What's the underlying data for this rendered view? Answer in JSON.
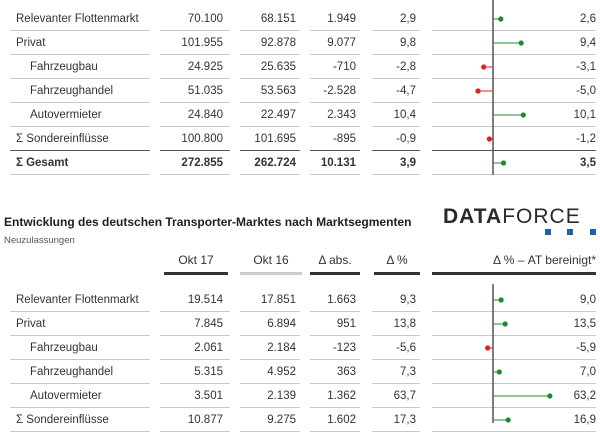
{
  "chart_data": [
    {
      "type": "table",
      "columns": [
        "",
        "",
        "",
        "",
        ""
      ],
      "rows": [
        {
          "name": "Relevanter Flottenmarkt",
          "values": [
            "70.100",
            "68.151",
            "1.949",
            "2,9"
          ],
          "adj": "2,6",
          "adj_value": 2.6
        },
        {
          "name": "Privat",
          "values": [
            "101.955",
            "92.878",
            "9.077",
            "9,8"
          ],
          "adj": "9,4",
          "adj_value": 9.4
        },
        {
          "name": "Fahrzeugbau",
          "values": [
            "24.925",
            "25.635",
            "-710",
            "-2,8"
          ],
          "adj": "-3,1",
          "adj_value": -3.1
        },
        {
          "name": "Fahrzeughandel",
          "values": [
            "51.035",
            "53.563",
            "-2.528",
            "-4,7"
          ],
          "adj": "-5,0",
          "adj_value": -5.0
        },
        {
          "name": "Autovermieter",
          "values": [
            "24.840",
            "22.497",
            "2.343",
            "10,4"
          ],
          "adj": "10,1",
          "adj_value": 10.1
        },
        {
          "name": "Σ Sondereinflüsse",
          "values": [
            "100.800",
            "101.695",
            "-895",
            "-0,9"
          ],
          "adj": "-1,2",
          "adj_value": -1.2
        },
        {
          "name": "Σ Gesamt",
          "values": [
            "272.855",
            "262.724",
            "10.131",
            "3,9"
          ],
          "adj": "3,5",
          "adj_value": 3.5
        }
      ]
    },
    {
      "type": "table",
      "title": "Entwicklung des deutschen Transporter-Marktes nach Marktsegmenten",
      "subtitle": "Neuzulassungen",
      "columns": [
        "Okt 17",
        "Okt 16",
        "Δ abs.",
        "Δ %",
        "Δ % – AT bereinigt*"
      ],
      "rows": [
        {
          "name": "Relevanter Flottenmarkt",
          "values": [
            "19.514",
            "17.851",
            "1.663",
            "9,3"
          ],
          "adj": "9,0",
          "adj_value": 9.0
        },
        {
          "name": "Privat",
          "values": [
            "7.845",
            "6.894",
            "951",
            "13,8"
          ],
          "adj": "13,5",
          "adj_value": 13.5
        },
        {
          "name": "Fahrzeugbau",
          "values": [
            "2.061",
            "2.184",
            "-123",
            "-5,6"
          ],
          "adj": "-5,9",
          "adj_value": -5.9
        },
        {
          "name": "Fahrzeughandel",
          "values": [
            "5.315",
            "4.952",
            "363",
            "7,3"
          ],
          "adj": "7,0",
          "adj_value": 7.0
        },
        {
          "name": "Autovermieter",
          "values": [
            "3.501",
            "2.139",
            "1.362",
            "63,7"
          ],
          "adj": "63,2",
          "adj_value": 63.2
        },
        {
          "name": "Σ Sondereinflüsse",
          "values": [
            "10.877",
            "9.275",
            "1.602",
            "17,3"
          ],
          "adj": "16,9",
          "adj_value": 16.9
        }
      ]
    }
  ],
  "logo": {
    "text_bold": "DATA",
    "text_light": "FORCE"
  },
  "colors": {
    "positive": "#1e8a2e",
    "negative": "#e0201b",
    "header_bar_primary": "#333333",
    "header_bar_secondary": "#cccccc",
    "logo_blue": "#1f5ea8"
  }
}
